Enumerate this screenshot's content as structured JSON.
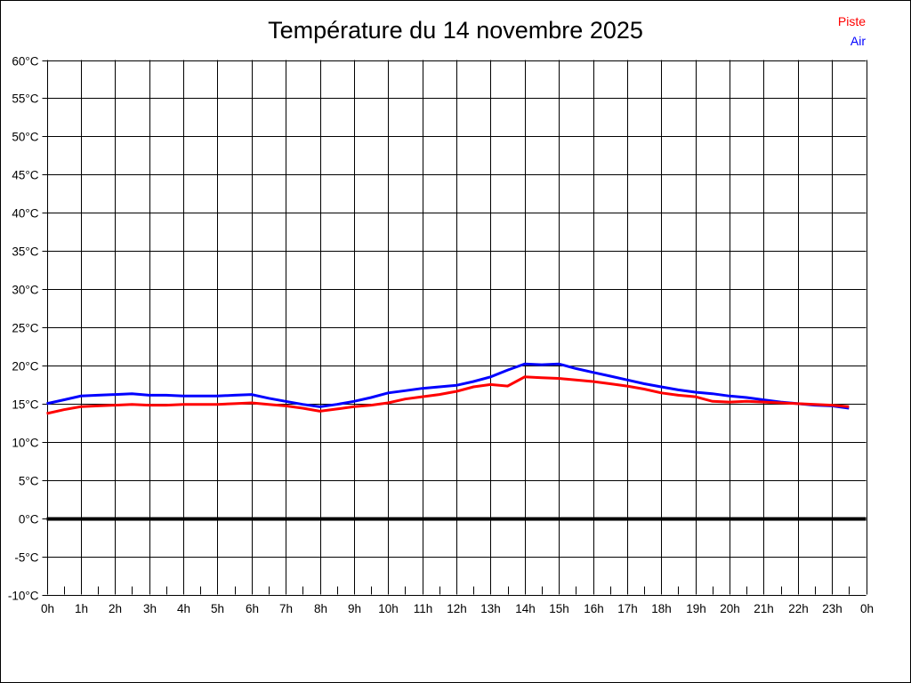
{
  "chart_data": {
    "type": "line",
    "title": "Température du 14 novembre 2025",
    "xlabel": "",
    "ylabel": "",
    "xlim": [
      0,
      24
    ],
    "ylim": [
      -10,
      60
    ],
    "x_major_step": 1,
    "x_minor_step": 0.5,
    "y_major_step": 5,
    "grid": "on",
    "zero_line_bold": true,
    "x_tick_labels": [
      "0h",
      "1h",
      "2h",
      "3h",
      "4h",
      "5h",
      "6h",
      "7h",
      "8h",
      "9h",
      "10h",
      "11h",
      "12h",
      "13h",
      "14h",
      "15h",
      "16h",
      "17h",
      "18h",
      "19h",
      "20h",
      "21h",
      "22h",
      "23h",
      "0h"
    ],
    "y_tick_labels": [
      "60°C",
      "55°C",
      "50°C",
      "45°C",
      "40°C",
      "35°C",
      "30°C",
      "25°C",
      "20°C",
      "15°C",
      "10°C",
      "5°C",
      "0°C",
      "-5°C",
      "-10°C"
    ],
    "y_tick_values": [
      60,
      55,
      50,
      45,
      40,
      35,
      30,
      25,
      20,
      15,
      10,
      5,
      0,
      -5,
      -10
    ],
    "legend": {
      "position": "top-right",
      "entries": [
        {
          "label": "Piste",
          "color": "#ff0000"
        },
        {
          "label": "Air",
          "color": "#0000ff"
        }
      ]
    },
    "x": [
      0,
      0.5,
      1,
      1.5,
      2,
      2.5,
      3,
      3.5,
      4,
      4.5,
      5,
      5.5,
      6,
      6.5,
      7,
      7.5,
      8,
      8.5,
      9,
      9.5,
      10,
      10.5,
      11,
      11.5,
      12,
      12.5,
      13,
      13.5,
      14,
      14.5,
      15,
      15.5,
      16,
      16.5,
      17,
      17.5,
      18,
      18.5,
      19,
      19.5,
      20,
      20.5,
      21,
      21.5,
      22,
      22.5,
      23,
      23.5
    ],
    "series": [
      {
        "name": "Air",
        "color": "#0000ff",
        "values": [
          15.0,
          15.5,
          16.0,
          16.1,
          16.2,
          16.3,
          16.1,
          16.1,
          16.0,
          16.0,
          16.0,
          16.1,
          16.2,
          15.7,
          15.3,
          14.9,
          14.6,
          14.9,
          15.3,
          15.8,
          16.4,
          16.7,
          17.0,
          17.2,
          17.4,
          17.9,
          18.5,
          19.4,
          20.2,
          20.1,
          20.2,
          19.6,
          19.1,
          18.6,
          18.1,
          17.6,
          17.2,
          16.8,
          16.5,
          16.3,
          16.0,
          15.8,
          15.5,
          15.2,
          15.0,
          14.8,
          14.7,
          14.4
        ]
      },
      {
        "name": "Piste",
        "color": "#ff0000",
        "values": [
          13.7,
          14.2,
          14.6,
          14.7,
          14.8,
          14.9,
          14.8,
          14.8,
          14.9,
          14.9,
          14.9,
          15.0,
          15.1,
          14.9,
          14.7,
          14.4,
          14.0,
          14.3,
          14.6,
          14.8,
          15.1,
          15.6,
          15.9,
          16.2,
          16.6,
          17.2,
          17.5,
          17.3,
          18.5,
          18.4,
          18.3,
          18.1,
          17.9,
          17.6,
          17.3,
          16.9,
          16.4,
          16.1,
          15.9,
          15.3,
          15.2,
          15.3,
          15.2,
          15.1,
          15.0,
          14.9,
          14.8,
          14.6
        ]
      }
    ]
  }
}
